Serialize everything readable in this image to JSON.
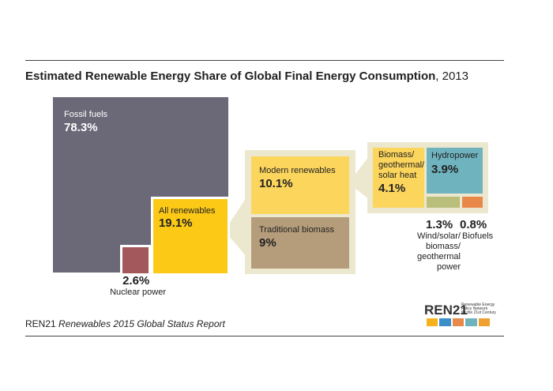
{
  "title": "Estimated Renewable Energy Share of Global Final Energy Consumption",
  "title_suffix": ", 2013",
  "chart_data": {
    "type": "nested-squares",
    "nodes": [
      {
        "name": "Fossil fuels",
        "value": 78.3,
        "value_label": "78.3%",
        "color": "#6b6877"
      },
      {
        "name": "All renewables",
        "value": 19.1,
        "value_label": "19.1%",
        "color": "#fcc917",
        "children": [
          {
            "name": "Modern renewables",
            "value": 10.1,
            "value_label": "10.1%",
            "color": "#fcd55c",
            "children": [
              {
                "name": "Biomass/ geothermal/ solar heat",
                "value": 4.1,
                "value_label": "4.1%",
                "color": "#fcd55c"
              },
              {
                "name": "Hydropower",
                "value": 3.9,
                "value_label": "3.9%",
                "color": "#6fb3bf"
              },
              {
                "name": "Wind/solar/ biomass/ geothermal power",
                "value": 1.3,
                "value_label": "1.3%",
                "color": "#b9bf7a"
              },
              {
                "name": "Biofuels",
                "value": 0.8,
                "value_label": "0.8%",
                "color": "#e8894a"
              }
            ]
          },
          {
            "name": "Traditional biomass",
            "value": 9,
            "value_label": "9%",
            "color": "#b59d7b"
          }
        ]
      },
      {
        "name": "Nuclear power",
        "value": 2.6,
        "value_label": "2.6%",
        "color": "#a3585b"
      }
    ]
  },
  "source": "REN21",
  "source_title": "Renewables 2015 Global Status Report",
  "logo": {
    "name": "REN21",
    "tagline": [
      "Renewable Energy",
      "Policy Network",
      "for the 21st Century"
    ]
  }
}
